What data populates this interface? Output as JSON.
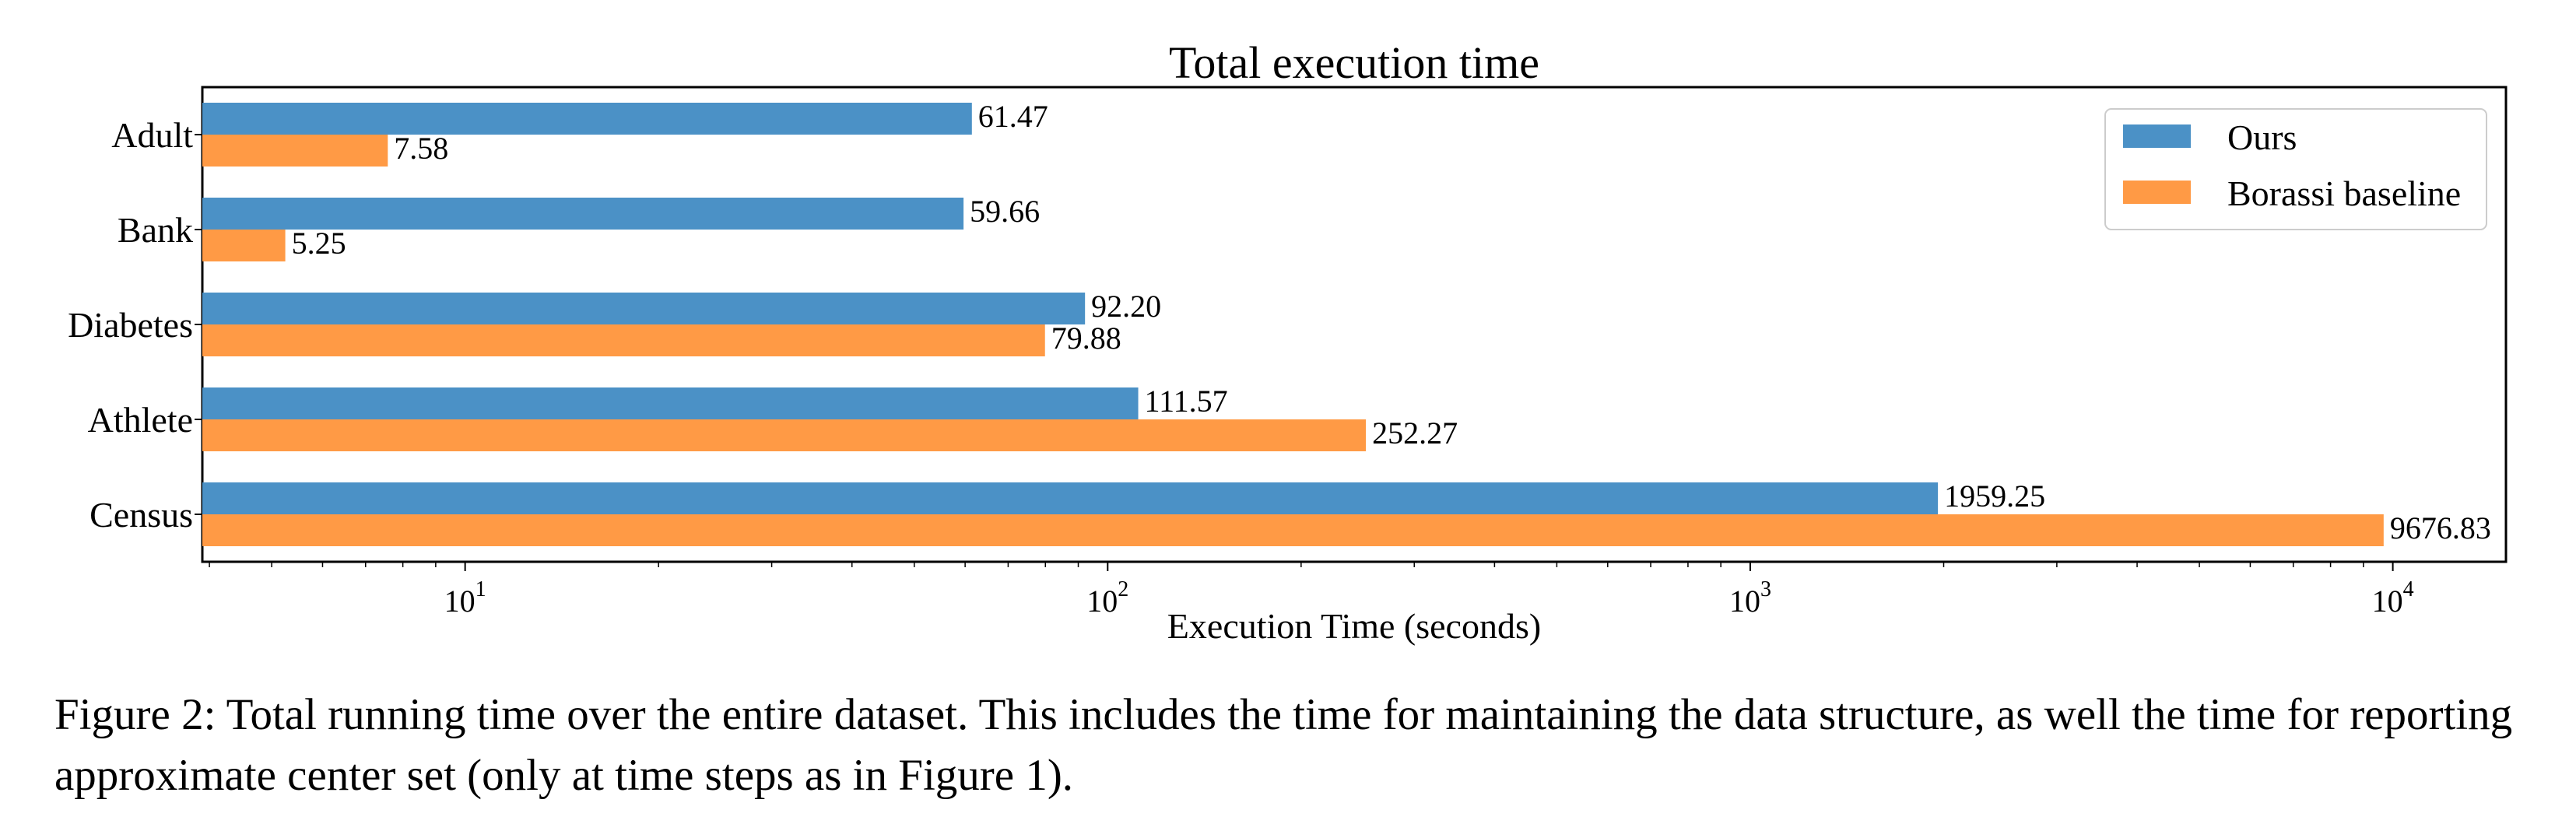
{
  "chart_data": {
    "type": "bar",
    "orientation": "horizontal",
    "title": "Total execution time",
    "xlabel": "Execution Time (seconds)",
    "ylabel": "",
    "xscale": "log",
    "xlim": [
      3.9,
      15000
    ],
    "x_ticks": [
      10,
      100,
      1000,
      10000
    ],
    "x_tick_labels": [
      {
        "base": "10",
        "exp": "1"
      },
      {
        "base": "10",
        "exp": "2"
      },
      {
        "base": "10",
        "exp": "3"
      },
      {
        "base": "10",
        "exp": "4"
      }
    ],
    "categories": [
      "Adult",
      "Bank",
      "Diabetes",
      "Athlete",
      "Census"
    ],
    "series": [
      {
        "name": "Ours",
        "color": "#4b91c6",
        "values": [
          61.47,
          59.66,
          92.2,
          111.57,
          1959.25
        ],
        "labels": [
          "61.47",
          "59.66",
          "92.20",
          "111.57",
          "1959.25"
        ]
      },
      {
        "name": "Borassi baseline",
        "color": "#ff9a45",
        "values": [
          7.58,
          5.25,
          79.88,
          252.27,
          9676.83
        ],
        "labels": [
          "7.58",
          "5.25",
          "79.88",
          "252.27",
          "9676.83"
        ]
      }
    ],
    "legend_position": "top-right",
    "grid": false
  },
  "caption": "Figure 2: Total running time over the entire dataset. This includes the time for maintaining the data structure, as well the time for reporting approximate center set (only at time steps as in Figure 1)."
}
